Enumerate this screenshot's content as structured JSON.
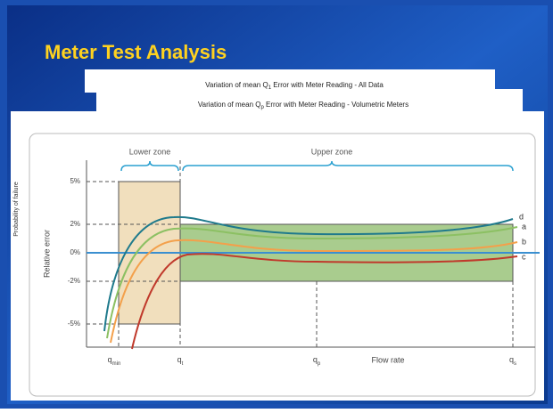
{
  "slide": {
    "title": "Meter Test Analysis"
  },
  "cards": [
    {
      "before": "Variation of mean Q",
      "sub": "1",
      "after": " Error with Meter Reading - All Data"
    },
    {
      "before": "Variation of mean Q",
      "sub": "p",
      "after": " Error with Meter Reading - Volumetric Meters"
    }
  ],
  "side_label": "Probability of failure",
  "diagram": {
    "y_label": "Relative error",
    "y_ticks": [
      "5%",
      "2%",
      "0%",
      "-2%",
      "-5%"
    ],
    "x_ticks": [
      {
        "base": "q",
        "sub": "min"
      },
      {
        "base": "q",
        "sub": "t"
      },
      {
        "base": "q",
        "sub": "p"
      },
      {
        "base": "q",
        "sub": "s"
      }
    ],
    "x_label": "Flow rate",
    "zones": [
      "Lower zone",
      "Upper zone"
    ],
    "curves": [
      "d",
      "a",
      "b",
      "c"
    ]
  }
}
